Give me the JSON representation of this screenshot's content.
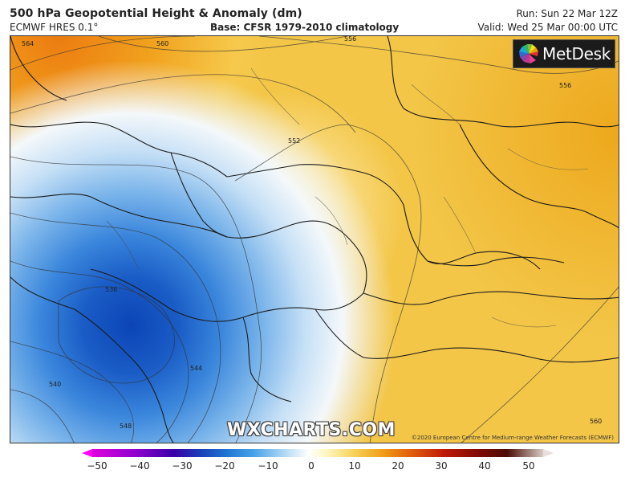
{
  "header": {
    "title": "500 hPa Geopotential Height & Anomaly (dm)",
    "model": "ECMWF HRES 0.1°",
    "base": "Base: CFSR 1979-2010 climatology",
    "run": "Run: Sun 22 Mar 12Z",
    "valid": "Valid: Wed 25 Mar 00:00 UTC"
  },
  "logo": {
    "text": "MetDesk"
  },
  "watermark": "WXCHARTS.COM",
  "copyright": "©2020 European Centre for Medium-range Weather Forecasts (ECMWF)",
  "contours": [
    "564",
    "560",
    "556",
    "556",
    "552",
    "536",
    "544",
    "540",
    "548",
    "560"
  ],
  "colorbar": {
    "ticks": [
      "−50",
      "−40",
      "−30",
      "−20",
      "−10",
      "0",
      "10",
      "20",
      "30",
      "40",
      "50"
    ],
    "colors": [
      "#dc00dc",
      "#3a00a8",
      "#1f77d4",
      "#ffffff",
      "#f0a21c",
      "#c01a08",
      "#4a0d06"
    ]
  }
}
